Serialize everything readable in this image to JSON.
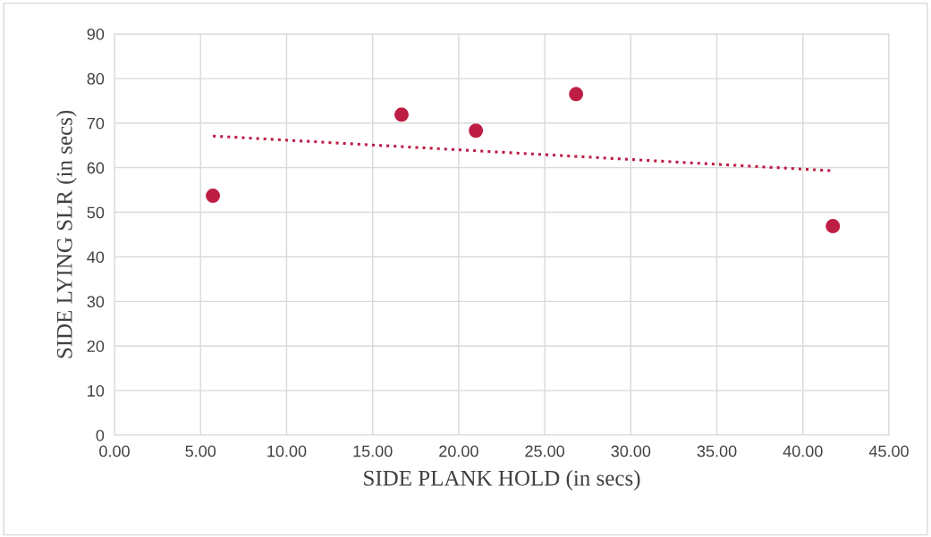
{
  "chart_data": {
    "type": "scatter",
    "xlabel": "SIDE PLANK HOLD (in secs)",
    "ylabel": "SIDE LYING SLR (in secs)",
    "series": [
      {
        "color": "#be1e44",
        "x": [
          5.72,
          16.68,
          21.0,
          26.82,
          41.74
        ],
        "values": [
          53.7,
          71.9,
          68.3,
          76.5,
          46.9
        ],
        "marker": "circle"
      },
      {
        "type": "line",
        "color": "#be1e44",
        "x": [
          5.72,
          41.74
        ],
        "values": [
          67.1,
          59.3
        ],
        "line_style": "dotted"
      }
    ],
    "xlim": [
      0,
      45
    ],
    "ylim": [
      0,
      90
    ],
    "xticks": [
      {
        "value": 0,
        "label": "0.00"
      },
      {
        "value": 5,
        "label": "5.00"
      },
      {
        "value": 10,
        "label": "10.00"
      },
      {
        "value": 15,
        "label": "15.00"
      },
      {
        "value": 20,
        "label": "20.00"
      },
      {
        "value": 25,
        "label": "25.00"
      },
      {
        "value": 30,
        "label": "30.00"
      },
      {
        "value": 35,
        "label": "35.00"
      },
      {
        "value": 40,
        "label": "40.00"
      },
      {
        "value": 45,
        "label": "45.00"
      }
    ],
    "yticks": [
      0,
      10,
      20,
      30,
      40,
      50,
      60,
      70,
      80,
      90
    ],
    "grid": true
  }
}
